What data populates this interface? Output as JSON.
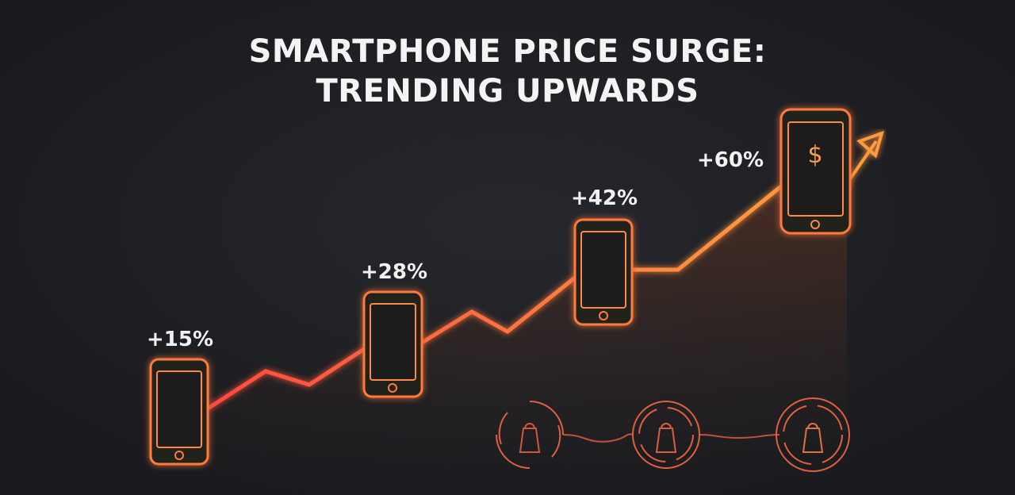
{
  "title": {
    "lines": [
      "SMARTPHONE PRICE SURGE:",
      "TRENDING UPWARDS"
    ]
  },
  "steps": [
    {
      "label": "+15%"
    },
    {
      "label": "+28%"
    },
    {
      "label": "+42%"
    },
    {
      "label": "+60%"
    }
  ]
}
